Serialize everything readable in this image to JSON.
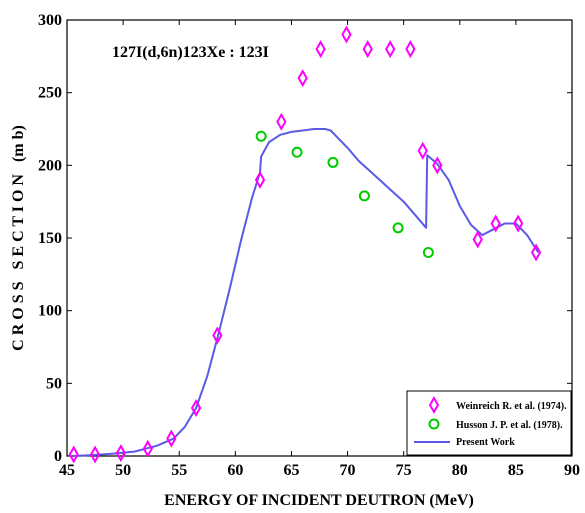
{
  "chart_data": {
    "type": "line",
    "xlabel": "ENERGY OF INCIDENT DEUTRON (MeV)",
    "ylabel": "C R O S S   S E C T I O N   (m b)",
    "annotation": "127I(d,6n)123Xe : 123I",
    "xlim": [
      45,
      90
    ],
    "ylim": [
      0,
      300
    ],
    "xticks": [
      45,
      50,
      55,
      60,
      65,
      70,
      75,
      80,
      85,
      90
    ],
    "yticks": [
      0,
      50,
      100,
      150,
      200,
      250,
      300
    ],
    "grid": false,
    "legend_position": "bottom-right",
    "series": [
      {
        "name": "Weinreich R. et al. (1974).",
        "kind": "scatter",
        "marker": "diamond",
        "color": "#ff00ff",
        "x": [
          45.6,
          47.5,
          49.8,
          52.2,
          54.3,
          56.5,
          58.4,
          62.2,
          64.1,
          66.0,
          67.6,
          69.9,
          71.8,
          73.8,
          75.6,
          76.7,
          78.0,
          81.6,
          83.2,
          85.2,
          86.8
        ],
        "y": [
          1,
          1,
          2,
          5,
          12,
          33,
          83,
          190,
          230,
          260,
          280,
          290,
          280,
          280,
          280,
          210,
          200,
          149,
          160,
          160,
          140
        ]
      },
      {
        "name": "Husson J. P. et al. (1978).",
        "kind": "scatter",
        "marker": "circle",
        "color": "#00cc00",
        "x": [
          62.3,
          65.5,
          68.7,
          71.5,
          74.5,
          77.2
        ],
        "y": [
          220,
          209,
          202,
          179,
          157,
          140
        ]
      },
      {
        "name": "Present Work",
        "kind": "line",
        "color": "#5a5ae6",
        "x": [
          45.5,
          47,
          49,
          51,
          53,
          54.5,
          55.5,
          56.5,
          57.5,
          58.5,
          59.5,
          60.5,
          61.5,
          62.2,
          62.3,
          63,
          64,
          65,
          66,
          67,
          67.5,
          68,
          68.5,
          69,
          70,
          71,
          72,
          73,
          74,
          75,
          76,
          77,
          77.1,
          78,
          79,
          80,
          81,
          82,
          83,
          84,
          85,
          86,
          87
        ],
        "y": [
          0,
          0.5,
          1.5,
          3,
          7,
          12,
          20,
          33,
          55,
          84,
          115,
          148,
          178,
          195,
          206,
          216,
          221,
          223,
          224,
          225,
          225,
          225,
          224,
          220,
          212,
          203,
          196,
          189,
          182,
          175,
          166,
          157,
          207,
          201,
          190,
          172,
          159,
          152,
          156,
          160,
          160,
          152,
          140
        ]
      }
    ]
  }
}
